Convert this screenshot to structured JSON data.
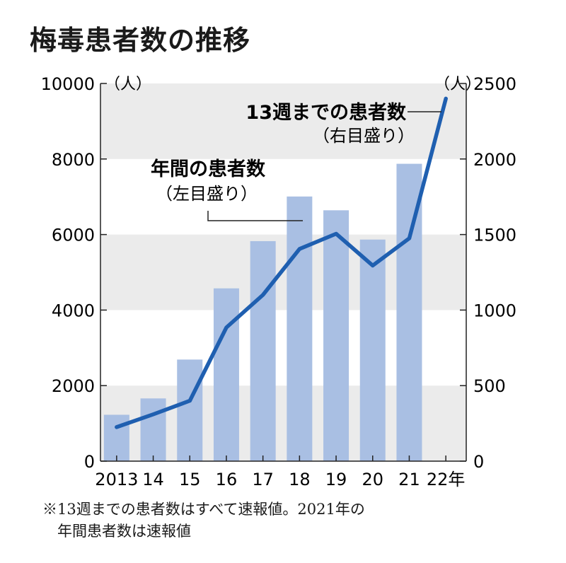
{
  "title": "梅毒患者数の推移",
  "chart_data": {
    "type": "bar+line",
    "categories": [
      "2013",
      "14",
      "15",
      "16",
      "17",
      "18",
      "19",
      "20",
      "21",
      "22年"
    ],
    "bar_series": {
      "name": "年間の患者数",
      "name_note": "（左目盛り）",
      "axis": "left",
      "values": [
        1228,
        1661,
        2690,
        4575,
        5826,
        7007,
        6642,
        5867,
        7873,
        null
      ]
    },
    "line_series": {
      "name": "13週までの患者数",
      "name_note": "（右目盛り）",
      "axis": "right",
      "values": [
        225,
        310,
        400,
        885,
        1100,
        1405,
        1505,
        1295,
        1475,
        2400
      ]
    },
    "left_axis": {
      "unit": "（人）",
      "min": 0,
      "max": 10000,
      "ticks": [
        "0",
        "2000",
        "4000",
        "6000",
        "8000",
        "10000"
      ]
    },
    "right_axis": {
      "unit": "（人）",
      "min": 0,
      "max": 2500,
      "ticks": [
        "0",
        "500",
        "1000",
        "1500",
        "2000",
        "2500"
      ]
    },
    "colors": {
      "bar": "#a9bfe3",
      "line": "#1f5fb0",
      "band": "#ebebeb"
    }
  },
  "footnote": [
    "※13週までの患者数はすべて速報値。2021年の",
    "年間患者数は速報値"
  ]
}
